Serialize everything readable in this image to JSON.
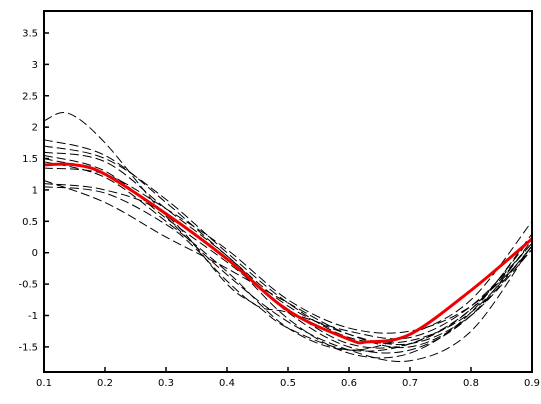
{
  "chart_data": {
    "type": "line",
    "xlim": [
      0.1,
      0.9
    ],
    "ylim": [
      -1.9,
      3.85
    ],
    "x_ticks": [
      0.1,
      0.2,
      0.3,
      0.4,
      0.5,
      0.6,
      0.7,
      0.8,
      0.9
    ],
    "x_tick_labels": [
      "0.1",
      "0.2",
      "0.3",
      "0.4",
      "0.5",
      "0.6",
      "0.7",
      "0.8",
      "0.9"
    ],
    "y_ticks": [
      -1.5,
      -1,
      -0.5,
      0,
      0.5,
      1,
      1.5,
      2,
      2.5,
      3,
      3.5
    ],
    "y_tick_labels": [
      "-1.5",
      "-1",
      "-0.5",
      "0",
      "0.5",
      "1",
      "1.5",
      "2",
      "2.5",
      "3",
      "3.5"
    ],
    "grid": false,
    "series": [
      {
        "style": "dashed",
        "color": "#000000",
        "x": [
          0.1,
          0.14,
          0.2,
          0.3,
          0.4,
          0.5,
          0.6,
          0.7,
          0.8,
          0.9
        ],
        "y": [
          2.1,
          2.22,
          1.75,
          0.58,
          -0.35,
          -1.1,
          -1.55,
          -1.72,
          -1.25,
          0.12
        ]
      },
      {
        "style": "dashed",
        "color": "#000000",
        "x": [
          0.1,
          0.2,
          0.3,
          0.4,
          0.5,
          0.6,
          0.7,
          0.8,
          0.9
        ],
        "y": [
          1.8,
          1.55,
          0.8,
          -0.05,
          -0.85,
          -1.3,
          -1.45,
          -1.0,
          0.05
        ]
      },
      {
        "style": "dashed",
        "color": "#000000",
        "x": [
          0.1,
          0.2,
          0.3,
          0.4,
          0.5,
          0.6,
          0.7,
          0.8,
          0.9
        ],
        "y": [
          1.7,
          1.5,
          0.85,
          0.0,
          -0.8,
          -1.35,
          -1.4,
          -0.95,
          0.1
        ]
      },
      {
        "style": "dashed",
        "color": "#000000",
        "x": [
          0.1,
          0.2,
          0.3,
          0.4,
          0.5,
          0.6,
          0.7,
          0.8,
          0.9
        ],
        "y": [
          1.6,
          1.45,
          0.7,
          -0.05,
          -0.95,
          -1.5,
          -1.55,
          -1.0,
          0.2
        ]
      },
      {
        "style": "dashed",
        "color": "#000000",
        "x": [
          0.1,
          0.2,
          0.3,
          0.4,
          0.5,
          0.6,
          0.7,
          0.8,
          0.9
        ],
        "y": [
          1.55,
          1.3,
          0.55,
          -0.15,
          -0.9,
          -1.45,
          -1.45,
          -0.9,
          0.25
        ]
      },
      {
        "style": "dashed",
        "color": "#000000",
        "x": [
          0.1,
          0.2,
          0.3,
          0.4,
          0.5,
          0.6,
          0.7,
          0.8,
          0.9
        ],
        "y": [
          1.5,
          1.25,
          0.6,
          -0.1,
          -1.05,
          -1.6,
          -1.6,
          -0.95,
          0.3
        ]
      },
      {
        "style": "dashed",
        "color": "#000000",
        "x": [
          0.1,
          0.2,
          0.3,
          0.4,
          0.5,
          0.6,
          0.7,
          0.8,
          0.9
        ],
        "y": [
          1.45,
          1.2,
          0.5,
          -0.3,
          -1.2,
          -1.55,
          -1.3,
          -0.75,
          0.5
        ]
      },
      {
        "style": "dashed",
        "color": "#000000",
        "x": [
          0.1,
          0.2,
          0.3,
          0.4,
          0.5,
          0.6,
          0.7,
          0.8,
          0.9
        ],
        "y": [
          1.35,
          1.25,
          0.7,
          0.05,
          -0.75,
          -1.2,
          -1.25,
          -0.85,
          0.05
        ]
      },
      {
        "style": "dashed",
        "color": "#000000",
        "x": [
          0.1,
          0.2,
          0.3,
          0.4,
          0.5,
          0.6,
          0.7,
          0.8,
          0.9
        ],
        "y": [
          1.15,
          0.8,
          0.25,
          -0.25,
          -0.8,
          -1.3,
          -1.5,
          -1.0,
          0.1
        ]
      },
      {
        "style": "dashed",
        "color": "#000000",
        "x": [
          0.1,
          0.2,
          0.3,
          0.4,
          0.45,
          0.5,
          0.6,
          0.7,
          0.8,
          0.9
        ],
        "y": [
          1.1,
          1.0,
          0.6,
          -0.5,
          -0.85,
          -1.2,
          -1.55,
          -1.45,
          -0.9,
          0.15
        ]
      },
      {
        "style": "dashed",
        "color": "#000000",
        "x": [
          0.1,
          0.2,
          0.3,
          0.35,
          0.4,
          0.45,
          0.5,
          0.6,
          0.7,
          0.8,
          0.9
        ],
        "y": [
          1.05,
          0.95,
          0.45,
          0.05,
          -0.45,
          -0.85,
          -0.95,
          -1.25,
          -1.35,
          -0.85,
          0.15
        ]
      },
      {
        "style": "solid",
        "color": "#ee0000",
        "x": [
          0.1,
          0.15,
          0.2,
          0.3,
          0.4,
          0.5,
          0.6,
          0.63,
          0.7,
          0.8,
          0.9
        ],
        "y": [
          1.4,
          1.4,
          1.25,
          0.62,
          -0.1,
          -0.92,
          -1.38,
          -1.42,
          -1.3,
          -0.6,
          0.22
        ]
      }
    ]
  }
}
